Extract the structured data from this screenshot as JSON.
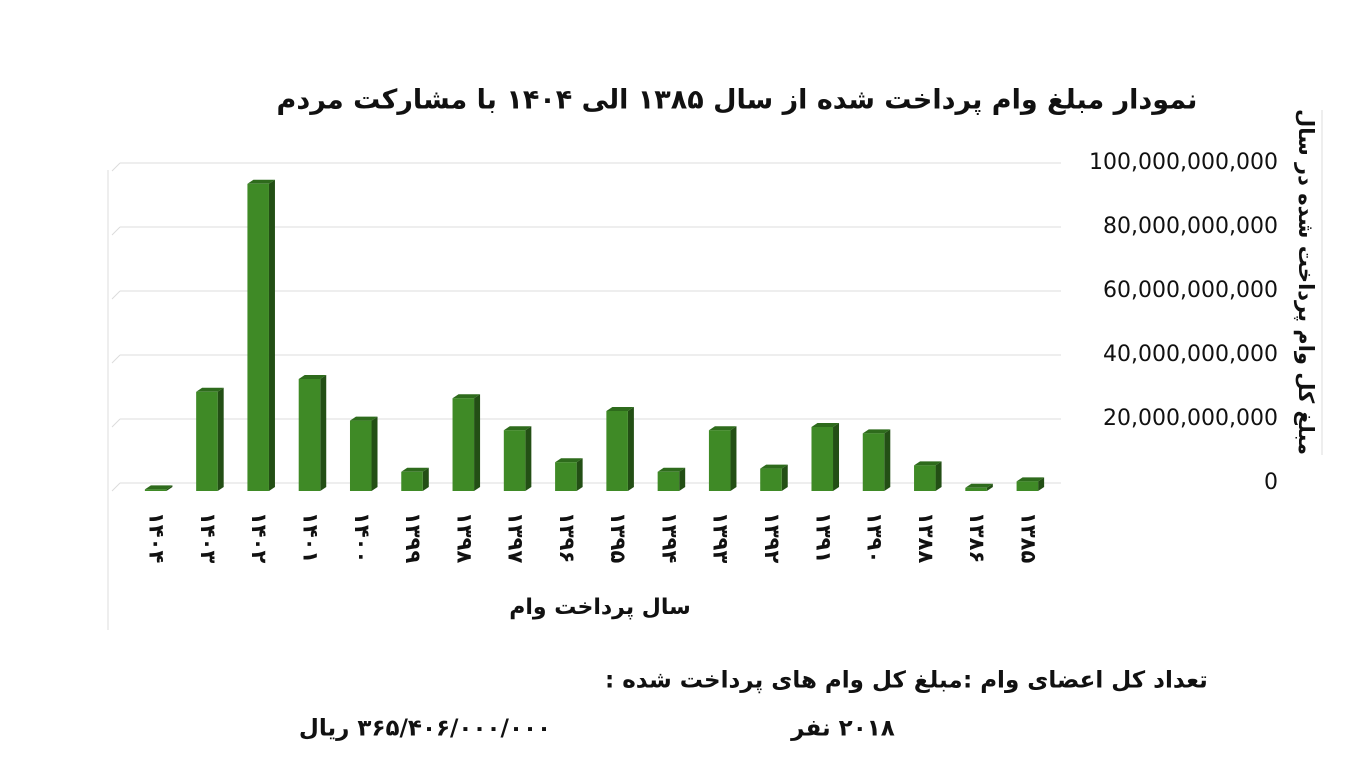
{
  "chart_data": {
    "type": "bar",
    "title": "نمودار مبلغ وام پرداخت شده از سال ۱۳۸۵ الی ۱۴۰۴  با مشارکت مردم",
    "x_label": "سال پرداخت وام",
    "y_label": "مبلغ کل وام پرداخت شده در سال",
    "categories": [
      "۱۴۰۴",
      "۱۴۰۳",
      "۱۴۰۲",
      "۱۴۰۱",
      "۱۴۰۰",
      "۱۳۹۹",
      "۱۳۹۸",
      "۱۳۹۷",
      "۱۳۹۶",
      "۱۳۹۵",
      "۱۳۹۴",
      "۱۳۹۳",
      "۱۳۹۲",
      "۱۳۹۱",
      "۱۳۹۰",
      "۱۳۸۸",
      "۱۳۸۶",
      "۱۳۸۵"
    ],
    "values": [
      500000000,
      31000000000,
      96000000000,
      35000000000,
      22000000000,
      6000000000,
      29000000000,
      19000000000,
      9000000000,
      25000000000,
      6000000000,
      19000000000,
      7000000000,
      20000000000,
      18000000000,
      8000000000,
      1000000000,
      3000000000
    ],
    "color": "#3f8a26",
    "ylim": [
      0,
      100000000000
    ],
    "yticks": [
      0,
      {
        "value": 20000000000,
        "label": "20,000,000,000"
      },
      {
        "value": 40000000000,
        "label": "40,000,000,000"
      },
      {
        "value": 60000000000,
        "label": "60,000,000,000"
      },
      {
        "value": 80000000000,
        "label": "80,000,000,000"
      },
      {
        "value": 100000000000,
        "label": "100,000,000,000"
      }
    ],
    "grid": true
  },
  "summary": {
    "total_amount_label": "مبلغ کل وام های پرداخت شده :",
    "total_amount": "۳۶۵/۴۰۶/۰۰۰/۰۰۰ ریال",
    "members_label": "تعداد کل اعضای وام :",
    "members": "۲۰۱۸ نفر"
  }
}
